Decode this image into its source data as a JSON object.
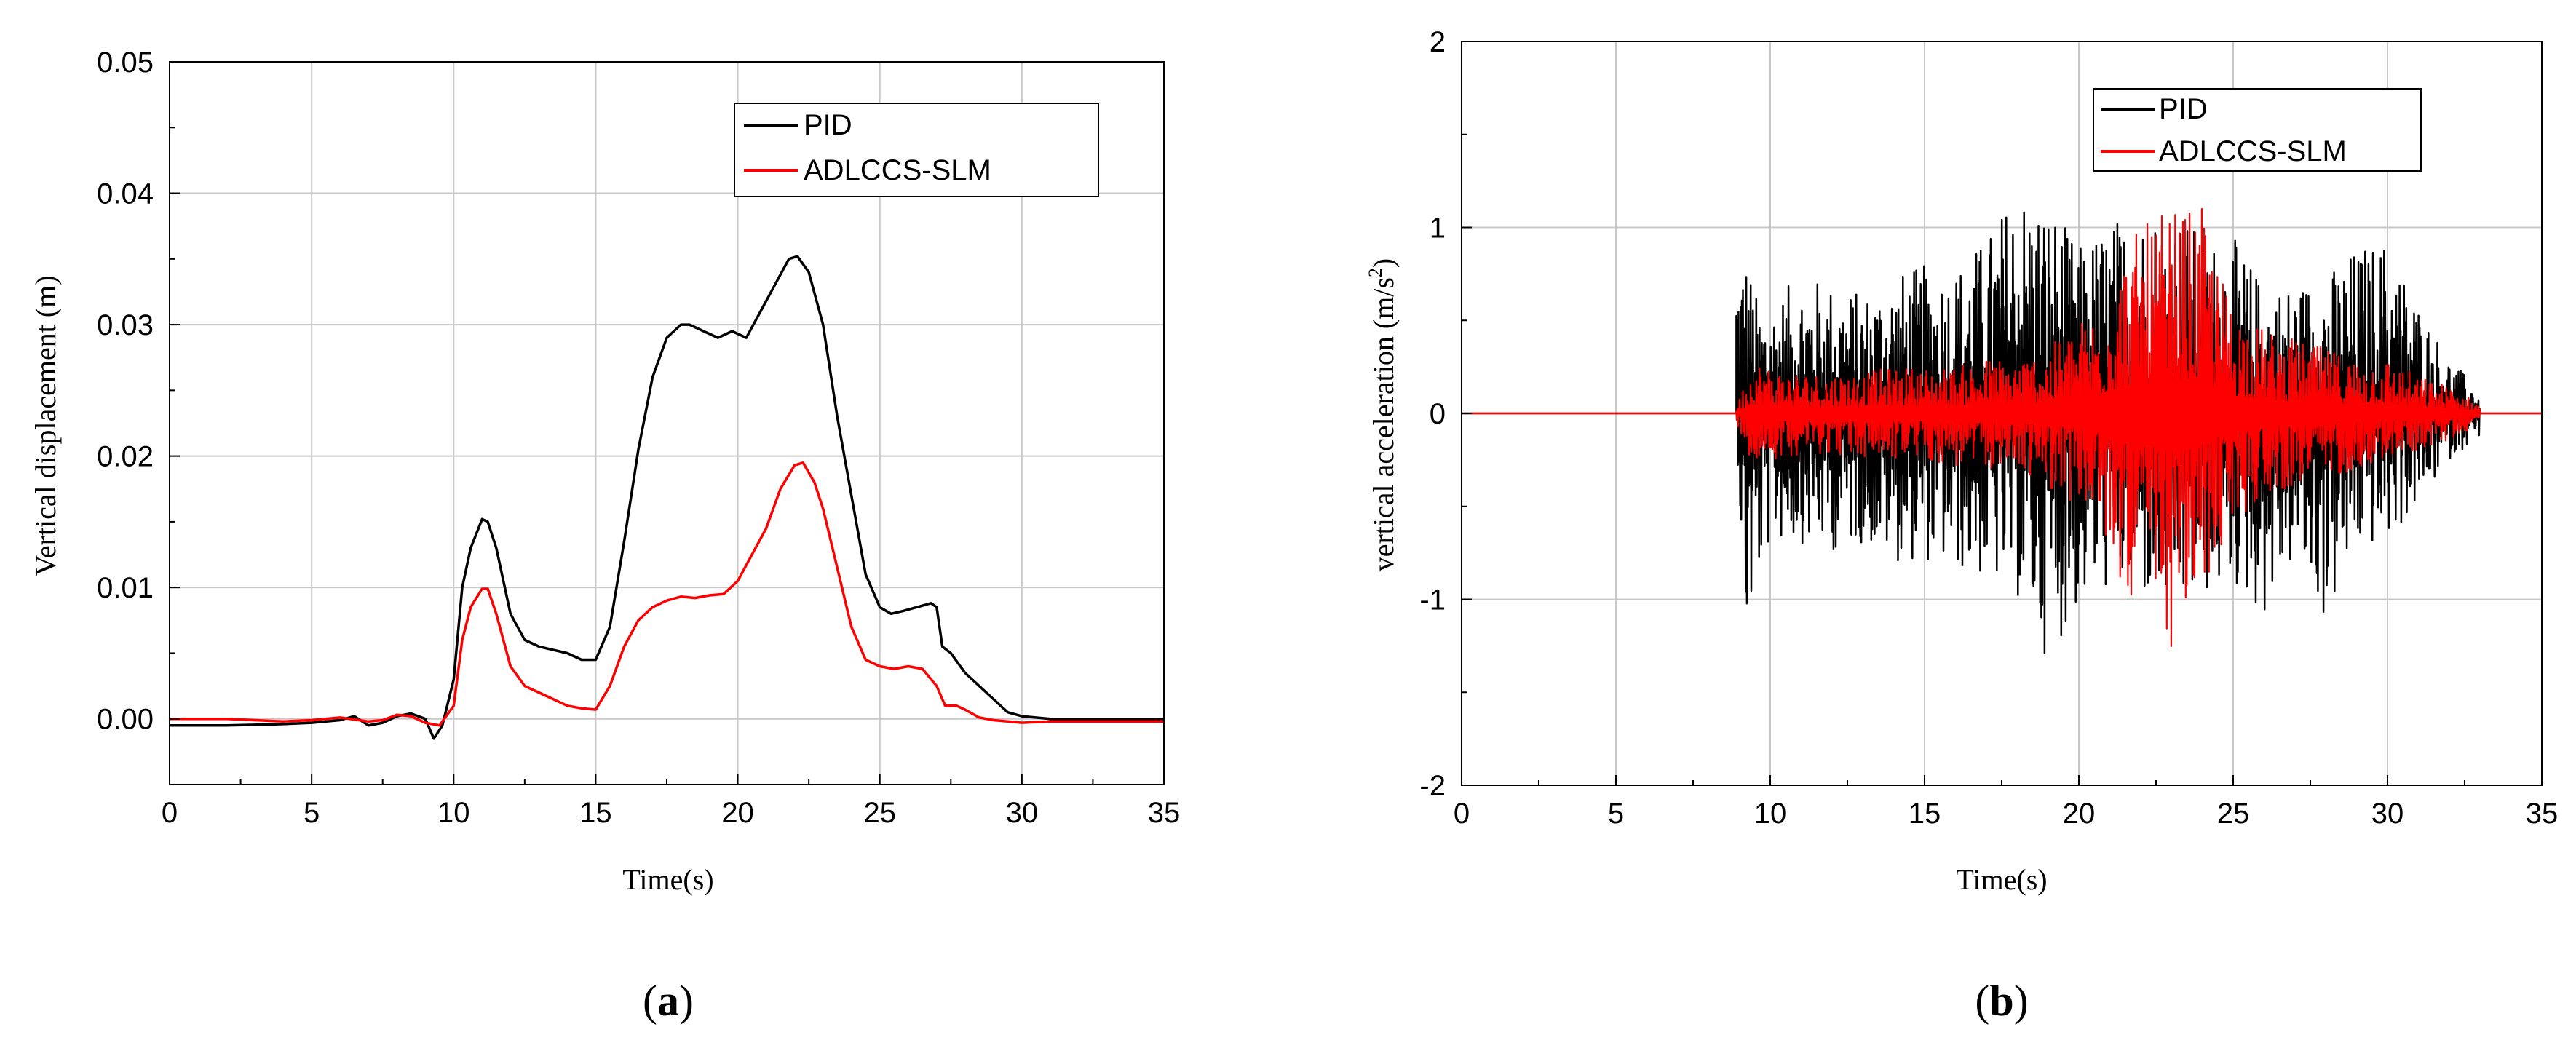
{
  "chart_data": [
    {
      "id": "a",
      "panel_label": "(a)",
      "panel_letter": "a",
      "type": "line",
      "xlabel": "Time(s)",
      "ylabel": "Vertical displacement (m)",
      "xlim": [
        0,
        35
      ],
      "ylim": [
        -0.005,
        0.05
      ],
      "xticks": [
        0,
        5,
        10,
        15,
        20,
        25,
        30,
        35
      ],
      "xtick_labels": [
        "0",
        "5",
        "10",
        "15",
        "20",
        "25",
        "30",
        "35"
      ],
      "yticks": [
        0,
        0.01,
        0.02,
        0.03,
        0.04,
        0.05
      ],
      "ytick_labels": [
        "0.00",
        "0.01",
        "0.02",
        "0.03",
        "0.04",
        "0.05"
      ],
      "grid": true,
      "legend_position": "top-right",
      "series": [
        {
          "name": "PID",
          "color": "#000000",
          "x": [
            0,
            2,
            4,
            5,
            6,
            6.5,
            7,
            7.5,
            8,
            8.5,
            9,
            9.3,
            9.6,
            10,
            10.3,
            10.6,
            11,
            11.2,
            11.5,
            12,
            12.5,
            13,
            14,
            14.5,
            15,
            15.5,
            16,
            16.5,
            17,
            17.5,
            18,
            18.3,
            18.8,
            19.3,
            19.8,
            20.3,
            20.8,
            21.3,
            21.8,
            22.1,
            22.5,
            23,
            23.5,
            24,
            24.5,
            25,
            25.4,
            25.8,
            26.3,
            26.8,
            27,
            27.1,
            27.2,
            27.5,
            28,
            28.5,
            29,
            29.5,
            30,
            31,
            32,
            33,
            34,
            35
          ],
          "y": [
            -0.0005,
            -0.0005,
            -0.0004,
            -0.0003,
            -0.0001,
            0.0002,
            -0.0005,
            -0.0003,
            0.0002,
            0.0004,
            0.0,
            -0.0015,
            -0.0005,
            0.003,
            0.01,
            0.013,
            0.0152,
            0.015,
            0.013,
            0.008,
            0.006,
            0.0055,
            0.005,
            0.0045,
            0.0045,
            0.007,
            0.0135,
            0.0205,
            0.026,
            0.029,
            0.03,
            0.03,
            0.0295,
            0.029,
            0.0295,
            0.029,
            0.031,
            0.033,
            0.035,
            0.0352,
            0.034,
            0.03,
            0.023,
            0.017,
            0.011,
            0.0085,
            0.008,
            0.0082,
            0.0085,
            0.0088,
            0.0085,
            0.007,
            0.0055,
            0.005,
            0.0035,
            0.0025,
            0.0015,
            0.0005,
            0.0002,
            0.0,
            0.0,
            0.0,
            0.0,
            0.0
          ]
        },
        {
          "name": "ADLCCS-SLM",
          "color": "#ff0000",
          "x": [
            0,
            2,
            4,
            5,
            6,
            7,
            7.5,
            8,
            8.5,
            9,
            9.5,
            10,
            10.3,
            10.6,
            11,
            11.2,
            11.5,
            12,
            12.5,
            13,
            14,
            14.5,
            15,
            15.5,
            16,
            16.5,
            17,
            17.5,
            18,
            18.5,
            19,
            19.5,
            20,
            20.5,
            21,
            21.5,
            22,
            22.3,
            22.7,
            23,
            23.5,
            24,
            24.5,
            25,
            25.5,
            26,
            26.5,
            27,
            27.3,
            27.7,
            28,
            28.5,
            29,
            29.5,
            30,
            31,
            32,
            33,
            34,
            35
          ],
          "y": [
            0.0,
            0.0,
            -0.0002,
            -0.0001,
            0.0001,
            -0.0002,
            -0.0001,
            0.0003,
            0.0002,
            -0.0003,
            -0.0005,
            0.001,
            0.006,
            0.0085,
            0.0099,
            0.0099,
            0.008,
            0.004,
            0.0025,
            0.002,
            0.001,
            0.0008,
            0.0007,
            0.0025,
            0.0055,
            0.0075,
            0.0085,
            0.009,
            0.0093,
            0.0092,
            0.0094,
            0.0095,
            0.0105,
            0.0125,
            0.0145,
            0.0175,
            0.0193,
            0.0195,
            0.018,
            0.016,
            0.0115,
            0.007,
            0.0045,
            0.004,
            0.0038,
            0.004,
            0.0038,
            0.0025,
            0.001,
            0.001,
            0.0007,
            0.0001,
            -0.0001,
            -0.0002,
            -0.0003,
            -0.0002,
            -0.0002,
            -0.0002,
            -0.0002,
            -0.0002
          ]
        }
      ]
    },
    {
      "id": "b",
      "panel_label": "(b)",
      "panel_letter": "b",
      "type": "line",
      "xlabel": "Time(s)",
      "ylabel": "vertical acceleration (m/s",
      "ylabel_sup": "2",
      "ylabel_end": ")",
      "xlim": [
        0,
        35
      ],
      "ylim": [
        -2,
        2
      ],
      "xticks": [
        0,
        5,
        10,
        15,
        20,
        25,
        30,
        35
      ],
      "xtick_labels": [
        "0",
        "5",
        "10",
        "15",
        "20",
        "25",
        "30",
        "35"
      ],
      "yticks": [
        -2,
        -1,
        0,
        1,
        2
      ],
      "ytick_labels": [
        "-2",
        "-1",
        "0",
        "1",
        "2"
      ],
      "grid": true,
      "legend_position": "top-right",
      "signal_range_s": [
        8.9,
        33
      ],
      "series": [
        {
          "name": "PID",
          "color": "#000000",
          "approx_envelope": {
            "t": [
              8.9,
              9.2,
              9.6,
              10,
              11,
              12,
              13,
              14,
              15,
              16,
              17,
              18,
              19,
              20,
              21,
              22,
              23,
              24,
              25,
              26,
              27,
              28,
              29,
              30,
              31,
              32,
              33
            ],
            "max": [
              0.9,
              0.9,
              0.6,
              0.6,
              0.75,
              0.7,
              0.65,
              0.75,
              0.8,
              0.8,
              0.95,
              1.25,
              1.15,
              0.9,
              1.05,
              1.1,
              1.15,
              0.95,
              0.95,
              0.7,
              0.7,
              0.75,
              0.9,
              0.95,
              0.6,
              0.3,
              0.12
            ],
            "min": [
              -0.05,
              -1.32,
              -0.95,
              -0.7,
              -0.7,
              -0.75,
              -0.7,
              -0.8,
              -0.8,
              -0.85,
              -0.9,
              -1.0,
              -1.33,
              -1.05,
              -0.95,
              -1.0,
              -1.1,
              -1.0,
              -0.95,
              -1.1,
              -0.8,
              -1.15,
              -0.75,
              -0.7,
              -0.5,
              -0.25,
              -0.12
            ]
          }
        },
        {
          "name": "ADLCCS-SLM",
          "color": "#ff0000",
          "approx_envelope": {
            "t": [
              8.9,
              9.5,
              10,
              11,
              12,
              13,
              14,
              15,
              16,
              17,
              18,
              19,
              20,
              20.5,
              21,
              21.5,
              22,
              22.5,
              23,
              23.5,
              24,
              24.5,
              25,
              26,
              27,
              28,
              29,
              30,
              31,
              32,
              33
            ],
            "max": [
              0.05,
              0.3,
              0.25,
              0.22,
              0.22,
              0.22,
              0.25,
              0.25,
              0.25,
              0.3,
              0.3,
              0.35,
              0.5,
              0.55,
              0.7,
              0.9,
              1.0,
              1.05,
              1.1,
              1.1,
              1.1,
              0.8,
              0.6,
              0.45,
              0.4,
              0.35,
              0.3,
              0.3,
              0.2,
              0.15,
              0.05
            ],
            "min": [
              -0.05,
              -0.3,
              -0.25,
              -0.22,
              -0.22,
              -0.25,
              -0.25,
              -0.25,
              -0.3,
              -0.3,
              -0.3,
              -0.4,
              -0.5,
              -0.6,
              -0.8,
              -0.95,
              -1.1,
              -1.2,
              -1.28,
              -1.2,
              -1.0,
              -0.8,
              -0.6,
              -0.45,
              -0.4,
              -0.35,
              -0.3,
              -0.25,
              -0.2,
              -0.15,
              -0.05
            ]
          }
        }
      ]
    }
  ]
}
